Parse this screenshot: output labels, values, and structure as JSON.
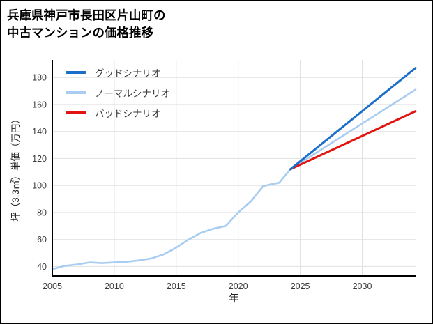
{
  "chart_data": {
    "type": "line",
    "title": "兵庫県神戸市長田区片山町の\n中古マンションの価格推移",
    "xlabel": "年",
    "ylabel": "坪（3.3㎡）単価（万円）",
    "xlim": [
      2005,
      2034.3
    ],
    "ylim": [
      33,
      193
    ],
    "xticks": [
      2005,
      2010,
      2015,
      2020,
      2025,
      2030
    ],
    "yticks": [
      40,
      60,
      80,
      100,
      120,
      140,
      160,
      180
    ],
    "grid": true,
    "grid_color": "#e0e0e0",
    "axis_color": "#000000",
    "tick_label_color": "#3a3a3a",
    "legend_position": "upper-left",
    "series": [
      {
        "name": "グッドシナリオ",
        "color": "#1b6fc8",
        "width": 3,
        "x": [
          2024.2,
          2034.3
        ],
        "y": [
          112,
          187
        ]
      },
      {
        "name": "ノーマルシナリオ",
        "color": "#a8cdf0",
        "width": 2.6,
        "x": [
          2005,
          2006,
          2007,
          2008,
          2009,
          2010,
          2011,
          2012,
          2013,
          2014,
          2015,
          2016,
          2017,
          2018,
          2019,
          2020,
          2021,
          2022,
          2022.7,
          2023.3,
          2024.2,
          2034.3
        ],
        "y": [
          38,
          40.5,
          41.5,
          43,
          42.5,
          43,
          43.5,
          44.5,
          46,
          49,
          54,
          60,
          65,
          68,
          70,
          80,
          88,
          99.5,
          101,
          102,
          112,
          171
        ]
      },
      {
        "name": "バッドシナリオ",
        "color": "#e31410",
        "width": 3,
        "x": [
          2024.2,
          2034.3
        ],
        "y": [
          112,
          155
        ]
      }
    ]
  }
}
